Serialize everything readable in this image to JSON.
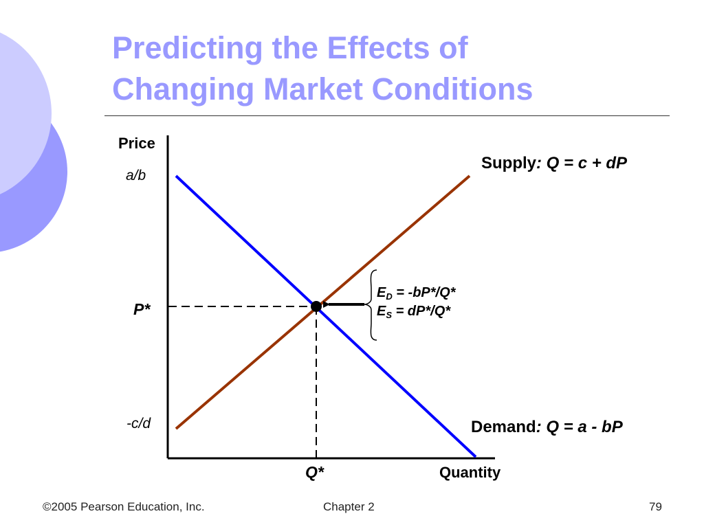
{
  "slide": {
    "title_line1": "Predicting the Effects of",
    "title_line2": "Changing Market Conditions"
  },
  "diagram": {
    "y_axis_label": "Price",
    "x_axis_label": "Quantity",
    "y_tick_top": "a/b",
    "y_tick_eq": "P*",
    "y_tick_bottom": "-c/d",
    "x_tick_eq": "Q*",
    "supply_label": "Supply",
    "supply_equation": ": Q = c + dP",
    "demand_label": "Demand",
    "demand_equation": ": Q = a - bP",
    "ed_letter": "E",
    "ed_sub": "D",
    "ed_expr": " = -bP*/Q*",
    "es_letter": "E",
    "es_sub": "S",
    "es_expr": " = dP*/Q*"
  },
  "footer": {
    "copyright": "©2005 Pearson Education, Inc.",
    "chapter": "Chapter 2",
    "page_number": "79"
  },
  "colors": {
    "title": "#9999ff",
    "demand_line": "#0000ff",
    "supply_line": "#993300",
    "decor_light": "#ccccff",
    "decor_dark": "#9999ff"
  }
}
